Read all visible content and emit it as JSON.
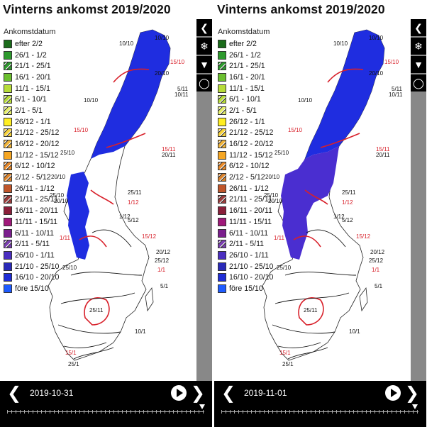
{
  "panels": [
    {
      "title": "Vinterns ankomst 2019/2020",
      "date": "2019-10-31"
    },
    {
      "title": "Vinterns ankomst 2019/2020",
      "date": "2019-11-01"
    }
  ],
  "legend": {
    "title": "Ankomstdatum",
    "items": [
      {
        "label": "efter 2/2",
        "color": "#1a6b1a",
        "pattern": "solid"
      },
      {
        "label": "26/1 - 1/2",
        "color": "#2e9a2e",
        "pattern": "solid"
      },
      {
        "label": "21/1 - 25/1",
        "color": "#2e9a2e",
        "pattern": "hatch"
      },
      {
        "label": "16/1 - 20/1",
        "color": "#6bbf2f",
        "pattern": "solid"
      },
      {
        "label": "11/1 - 15/1",
        "color": "#b7dc3a",
        "pattern": "solid"
      },
      {
        "label": "6/1 - 10/1",
        "color": "#b7dc3a",
        "pattern": "hatch"
      },
      {
        "label": "2/1 - 5/1",
        "color": "#e6ef6b",
        "pattern": "hatch"
      },
      {
        "label": "26/12 - 1/1",
        "color": "#ffee22",
        "pattern": "solid"
      },
      {
        "label": "21/12 - 25/12",
        "color": "#f7d23a",
        "pattern": "hatch"
      },
      {
        "label": "16/12 - 20/12",
        "color": "#f0b43a",
        "pattern": "hatch"
      },
      {
        "label": "11/12 - 15/12",
        "color": "#f5a623",
        "pattern": "solid"
      },
      {
        "label": "6/12 - 10/12",
        "color": "#e88a2a",
        "pattern": "hatch"
      },
      {
        "label": "2/12 - 5/12",
        "color": "#d9822b",
        "pattern": "hatch"
      },
      {
        "label": "26/11 - 1/12",
        "color": "#c0562b",
        "pattern": "solid"
      },
      {
        "label": "21/11 - 25/11",
        "color": "#9a3c3c",
        "pattern": "hatch"
      },
      {
        "label": "16/11 - 20/11",
        "color": "#8a1f3a",
        "pattern": "solid"
      },
      {
        "label": "11/11 - 15/11",
        "color": "#a0197a",
        "pattern": "solid"
      },
      {
        "label": "6/11 - 10/11",
        "color": "#7a1e8c",
        "pattern": "solid"
      },
      {
        "label": "2/11 - 5/11",
        "color": "#7a3fb0",
        "pattern": "hatch"
      },
      {
        "label": "26/10 - 1/11",
        "color": "#4b2fc0",
        "pattern": "solid"
      },
      {
        "label": "21/10 - 25/10",
        "color": "#2a2ab8",
        "pattern": "solid"
      },
      {
        "label": "16/10 - 20/10",
        "color": "#1f2dd6",
        "pattern": "solid"
      },
      {
        "label": "före 15/10",
        "color": "#1e5bff",
        "pattern": "solid"
      }
    ]
  },
  "map_labels": [
    "10/10",
    "10/10",
    "15/10",
    "20/10",
    "5/11",
    "10/11",
    "10/10",
    "15/10",
    "15/11",
    "20/11",
    "25/10",
    "20/10",
    "25/10",
    "20/10",
    "25/11",
    "1/12",
    "1/12",
    "5/12",
    "15/12",
    "1/11",
    "20/12",
    "25/10",
    "25/12",
    "1/1",
    "5/1",
    "25/11",
    "10/1",
    "15/1",
    "25/1"
  ],
  "icons": {
    "back": "chevron-left-icon",
    "weather": "weather-icon",
    "layer": "layer-icon",
    "globe": "globe-icon"
  },
  "colors": {
    "snow_blue": "#1f2de0",
    "snow_purple": "#4a2ed0",
    "isoline_red": "#d8202a",
    "isoline_dark": "#111111",
    "grey_sidebar": "#888888"
  }
}
